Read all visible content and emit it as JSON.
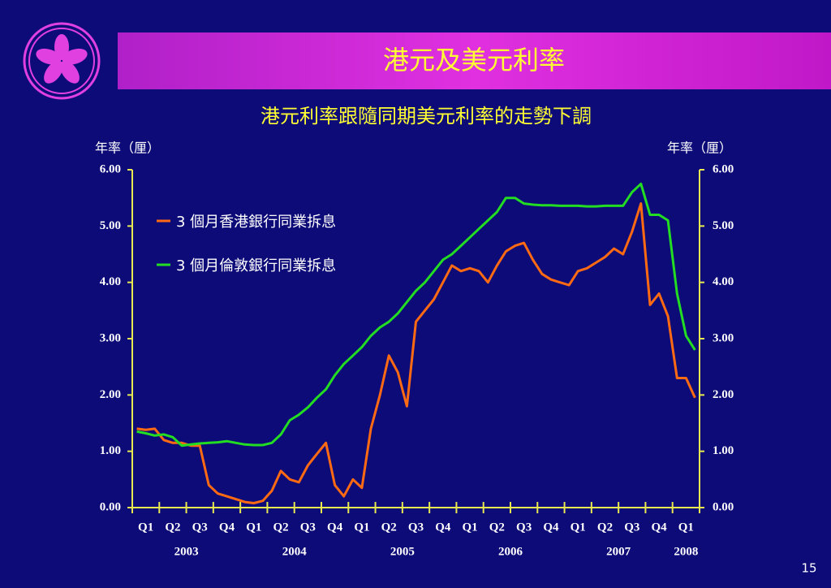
{
  "chart_data": {
    "type": "line",
    "title": "港元及美元利率",
    "subtitle": "港元利率跟隨同期美元利率的走勢下調",
    "y_label": "年率（厘）",
    "y2_label": "年率（厘）",
    "x": [
      2003.042,
      2003.125,
      2003.208,
      2003.292,
      2003.375,
      2003.458,
      2003.542,
      2003.625,
      2003.708,
      2003.792,
      2003.875,
      2003.958,
      2004.042,
      2004.125,
      2004.208,
      2004.292,
      2004.375,
      2004.458,
      2004.542,
      2004.625,
      2004.708,
      2004.792,
      2004.875,
      2004.958,
      2005.042,
      2005.125,
      2005.208,
      2005.292,
      2005.375,
      2005.458,
      2005.542,
      2005.625,
      2005.708,
      2005.792,
      2005.875,
      2005.958,
      2006.042,
      2006.125,
      2006.208,
      2006.292,
      2006.375,
      2006.458,
      2006.542,
      2006.625,
      2006.708,
      2006.792,
      2006.875,
      2006.958,
      2007.042,
      2007.125,
      2007.208,
      2007.292,
      2007.375,
      2007.458,
      2007.542,
      2007.625,
      2007.708,
      2007.792,
      2007.875,
      2007.958,
      2008.042,
      2008.125,
      2008.208
    ],
    "xlim": [
      2003,
      2008.25
    ],
    "xticks": [
      2003,
      2003.25,
      2003.5,
      2003.75,
      2004,
      2004.25,
      2004.5,
      2004.75,
      2005,
      2005.25,
      2005.5,
      2005.75,
      2006,
      2006.25,
      2006.5,
      2006.75,
      2007,
      2007.25,
      2007.5,
      2007.75,
      2008,
      2008.25
    ],
    "quarter_labels": [
      {
        "value": 2003.125,
        "label": "Q1"
      },
      {
        "value": 2003.375,
        "label": "Q2"
      },
      {
        "value": 2003.625,
        "label": "Q3"
      },
      {
        "value": 2003.875,
        "label": "Q4"
      },
      {
        "value": 2004.125,
        "label": "Q1"
      },
      {
        "value": 2004.375,
        "label": "Q2"
      },
      {
        "value": 2004.625,
        "label": "Q3"
      },
      {
        "value": 2004.875,
        "label": "Q4"
      },
      {
        "value": 2005.125,
        "label": "Q1"
      },
      {
        "value": 2005.375,
        "label": "Q2"
      },
      {
        "value": 2005.625,
        "label": "Q3"
      },
      {
        "value": 2005.875,
        "label": "Q4"
      },
      {
        "value": 2006.125,
        "label": "Q1"
      },
      {
        "value": 2006.375,
        "label": "Q2"
      },
      {
        "value": 2006.625,
        "label": "Q3"
      },
      {
        "value": 2006.875,
        "label": "Q4"
      },
      {
        "value": 2007.125,
        "label": "Q1"
      },
      {
        "value": 2007.375,
        "label": "Q2"
      },
      {
        "value": 2007.625,
        "label": "Q3"
      },
      {
        "value": 2007.875,
        "label": "Q4"
      },
      {
        "value": 2008.125,
        "label": "Q1"
      }
    ],
    "year_labels": [
      {
        "value": 2003.5,
        "label": "2003"
      },
      {
        "value": 2004.5,
        "label": "2004"
      },
      {
        "value": 2005.5,
        "label": "2005"
      },
      {
        "value": 2006.5,
        "label": "2006"
      },
      {
        "value": 2007.5,
        "label": "2007"
      },
      {
        "value": 2008.125,
        "label": "2008"
      }
    ],
    "ylim": [
      0,
      6
    ],
    "yticks": [
      {
        "value": 0,
        "label": "0.00"
      },
      {
        "value": 1,
        "label": "1.00"
      },
      {
        "value": 2,
        "label": "2.00"
      },
      {
        "value": 3,
        "label": "3.00"
      },
      {
        "value": 4,
        "label": "4.00"
      },
      {
        "value": 5,
        "label": "5.00"
      },
      {
        "value": 6,
        "label": "6.00"
      }
    ],
    "y2lim": [
      0,
      6
    ],
    "y2ticks": [
      {
        "value": 0,
        "label": "0.00"
      },
      {
        "value": 1,
        "label": "1.00"
      },
      {
        "value": 2,
        "label": "2.00"
      },
      {
        "value": 3,
        "label": "3.00"
      },
      {
        "value": 4,
        "label": "4.00"
      },
      {
        "value": 5,
        "label": "5.00"
      },
      {
        "value": 6,
        "label": "6.00"
      }
    ],
    "series": [
      {
        "name": "3 個月香港銀行同業拆息",
        "color": "#ff6a13",
        "values": [
          1.4,
          1.38,
          1.4,
          1.2,
          1.15,
          1.15,
          1.1,
          1.1,
          0.4,
          0.25,
          0.2,
          0.15,
          0.1,
          0.08,
          0.12,
          0.3,
          0.65,
          0.5,
          0.45,
          0.75,
          0.95,
          1.15,
          0.4,
          0.2,
          0.5,
          0.35,
          1.4,
          2.0,
          2.7,
          2.4,
          1.8,
          3.3,
          3.5,
          3.7,
          4.0,
          4.3,
          4.2,
          4.25,
          4.2,
          4.0,
          4.3,
          4.55,
          4.65,
          4.7,
          4.4,
          4.15,
          4.05,
          4.0,
          3.95,
          4.2,
          4.25,
          4.35,
          4.45,
          4.6,
          4.5,
          4.9,
          5.4,
          3.6,
          3.8,
          3.4,
          2.3,
          2.3,
          1.95
        ]
      },
      {
        "name": "3 個月倫敦銀行同業拆息",
        "color": "#22dd22",
        "values": [
          1.35,
          1.32,
          1.28,
          1.3,
          1.25,
          1.1,
          1.12,
          1.14,
          1.15,
          1.16,
          1.18,
          1.15,
          1.12,
          1.11,
          1.11,
          1.15,
          1.3,
          1.55,
          1.65,
          1.78,
          1.95,
          2.1,
          2.35,
          2.55,
          2.7,
          2.85,
          3.05,
          3.2,
          3.3,
          3.45,
          3.65,
          3.85,
          4.0,
          4.2,
          4.4,
          4.5,
          4.65,
          4.8,
          4.95,
          5.1,
          5.25,
          5.5,
          5.5,
          5.4,
          5.38,
          5.37,
          5.37,
          5.36,
          5.36,
          5.36,
          5.35,
          5.35,
          5.36,
          5.36,
          5.36,
          5.6,
          5.75,
          5.2,
          5.2,
          5.1,
          3.8,
          3.05,
          2.8
        ]
      }
    ]
  },
  "page_number": "15"
}
